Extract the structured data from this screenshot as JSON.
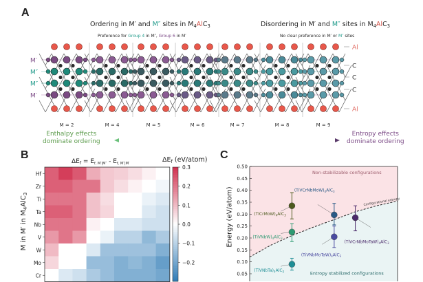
{
  "panel_a": {
    "label": "A",
    "ordering_title": {
      "pre": "Ordering in M′ and ",
      "m2": "M″",
      "mid": " sites in M",
      "sub4": "4",
      "al": "Al",
      "c": "C",
      "sub3": "3"
    },
    "ordering_subtitle": {
      "pre": "Preference for ",
      "g4": "Group 4",
      "mid": " in M″, ",
      "g6": "Group 6",
      "post": " in M′"
    },
    "disordering_title": {
      "pre": "Disordering in M′ and ",
      "m2": "M″",
      "mid": " sites in M",
      "sub4": "4",
      "al": "Al",
      "c": "C",
      "sub3": "3"
    },
    "disordering_subtitle": {
      "pre": "No clear preference in M′ or ",
      "m2": "M″",
      "post": " sites"
    },
    "left_site_labels": [
      "M′",
      "M″",
      "M″",
      "M′"
    ],
    "right_site_labels": [
      "Al",
      "C",
      "C",
      "C",
      "Al"
    ],
    "structures": [
      {
        "label": "M = 2",
        "m1_color": "#7a4a82",
        "m2_color": "#1f8a7a",
        "mix": 0.0
      },
      {
        "label": "M = 4",
        "m1_color": "#8a5a92",
        "m2_color": "#2a6a66",
        "mix": 0.3
      },
      {
        "label": "M = 5",
        "m1_color": "#8a5a92",
        "m2_color": "#3a5a60",
        "mix": 0.45
      },
      {
        "label": "M = 6",
        "m1_color": "#6a5a86",
        "m2_color": "#2a7a78",
        "mix": 0.55
      },
      {
        "label": "M = 7",
        "m1_color": "#5a7a8a",
        "m2_color": "#3a8a88",
        "mix": 0.7
      },
      {
        "label": "M = 8",
        "m1_color": "#4a8a98",
        "m2_color": "#4a9aa0",
        "mix": 0.85
      },
      {
        "label": "M = 9",
        "m1_color": "#5a9aa8",
        "m2_color": "#5a9aa8",
        "mix": 1.0
      }
    ],
    "al_color": "#e8574a",
    "c_color": "#2a2a2a",
    "enthalpy_text": [
      "Enthalpy effects",
      "dominate ordering"
    ],
    "entropy_text": [
      "Entropy effects",
      "dominate ordering"
    ]
  },
  "chart_data": [
    {
      "type": "heatmap",
      "panel_label": "B",
      "title": "ΔE_f = E_f, M′|M″ - E_f, M″|M′",
      "title_parts": {
        "main": "ΔE",
        "f": "f",
        "eq": " = E",
        "s1": "f, M′|M″",
        "minus": " - E",
        "s2": "f, M″|M′"
      },
      "ylabel": "M in M′ in M4AlC3",
      "ylabel_parts": {
        "pre": "M in M′ in M",
        "sub4": "4",
        "mid": "AlC",
        "sub3": "3"
      },
      "rows": [
        "Hf",
        "Zr",
        "Ti",
        "Ta",
        "Nb",
        "V",
        "W",
        "Mo",
        "Cr"
      ],
      "values": [
        [
          0.23,
          0.28,
          0.24,
          0.12,
          0.08,
          0.07,
          0.05,
          0.02,
          0.0
        ],
        [
          0.23,
          0.23,
          0.2,
          0.2,
          0.08,
          0.05,
          0.02,
          0.0,
          -0.02
        ],
        [
          0.2,
          0.2,
          0.2,
          0.09,
          0.05,
          0.0,
          0.0,
          -0.03,
          -0.05
        ],
        [
          0.23,
          0.23,
          0.2,
          0.09,
          0.06,
          0.0,
          0.0,
          -0.05,
          -0.07
        ],
        [
          0.2,
          0.2,
          0.2,
          0.02,
          0.0,
          -0.05,
          -0.05,
          -0.07,
          -0.07
        ],
        [
          0.15,
          0.2,
          0.15,
          0.0,
          -0.03,
          -0.1,
          -0.1,
          -0.16,
          -0.12
        ],
        [
          0.1,
          0.0,
          0.0,
          -0.05,
          -0.14,
          -0.14,
          -0.14,
          -0.14,
          -0.18
        ],
        [
          0.06,
          0.0,
          0.0,
          -0.15,
          -0.15,
          -0.18,
          -0.16,
          -0.18,
          -0.22
        ],
        [
          0.0,
          -0.05,
          -0.07,
          -0.12,
          -0.15,
          -0.18,
          -0.18,
          -0.18,
          -0.2
        ]
      ],
      "colorbar": {
        "title": "ΔE_f (eV/atom)",
        "title_parts": {
          "main": "ΔE",
          "f": "f",
          "unit": " (eV/atom)"
        },
        "range": [
          -0.3,
          0.3
        ],
        "ticks": [
          "0.3",
          "0.2",
          "0.1",
          "0.0",
          "−0.1",
          "−0.2"
        ],
        "tick_values": [
          0.3,
          0.2,
          0.1,
          0.0,
          -0.1,
          -0.2
        ],
        "colors": {
          "high": "#d1304e",
          "mid": "#ffffff",
          "low": "#2f7bb6"
        }
      }
    },
    {
      "type": "scatter",
      "panel_label": "C",
      "ylabel": "Energy (eV/atom)",
      "ylim": [
        0.05,
        0.5
      ],
      "xlim": [
        2,
        9
      ],
      "yticks": [
        "0.50",
        "0.45",
        "0.40",
        "0.35",
        "0.30",
        "0.25",
        "0.20",
        "0.15",
        "0.10",
        "0.05"
      ],
      "ytick_values": [
        0.5,
        0.45,
        0.4,
        0.35,
        0.3,
        0.25,
        0.2,
        0.15,
        0.1,
        0.05
      ],
      "regions": {
        "upper": {
          "label": "Non-stabilizable configurations",
          "color": "#fbe3e6"
        },
        "lower": {
          "label": "Entropy stabilized configurations",
          "color": "#eaf4f4"
        }
      },
      "curve": {
        "label": "Configurational entropy",
        "points": [
          [
            2,
            0.12
          ],
          [
            3,
            0.17
          ],
          [
            4,
            0.21
          ],
          [
            5,
            0.245
          ],
          [
            6,
            0.277
          ],
          [
            7,
            0.31
          ],
          [
            8,
            0.335
          ],
          [
            9,
            0.355
          ]
        ]
      },
      "points": [
        {
          "label": "(TiCrMoW)4AlC3",
          "name": "(TiCrMoW)",
          "x": 4,
          "y": 0.335,
          "ymin": 0.28,
          "ymax": 0.39,
          "color": "#4d5a1e"
        },
        {
          "label": "(TiVNbW)4AlC3",
          "name": "(TiVNbW)",
          "x": 4,
          "y": 0.225,
          "ymin": 0.185,
          "ymax": 0.26,
          "color": "#2e9a72"
        },
        {
          "label": "(TiVNbTa)4AlC3",
          "name": "(TiVNbTa)",
          "x": 4,
          "y": 0.09,
          "ymin": 0.065,
          "ymax": 0.115,
          "color": "#1f8e96"
        },
        {
          "label": "(TiVCrNbMoW)4AlC3",
          "name": "(TiVCrNbMoW)",
          "x": 6,
          "y": 0.297,
          "ymin": 0.255,
          "ymax": 0.345,
          "color": "#2a5a86"
        },
        {
          "label": "(TiVNbMoTaW)4AlC3",
          "name": "(TiVNbMoTaW)",
          "x": 6,
          "y": 0.205,
          "ymin": 0.16,
          "ymax": 0.25,
          "color": "#4a4aa0"
        },
        {
          "label": "(TiVCrNbMoTaW)4AlC3",
          "name": "(TiVCrNbMoTaW)",
          "x": 7,
          "y": 0.285,
          "ymin": 0.23,
          "ymax": 0.335,
          "color": "#4a2a6a"
        }
      ],
      "point_suffix": {
        "sub4": "4",
        "mid": "AlC",
        "sub3": "3"
      }
    }
  ]
}
